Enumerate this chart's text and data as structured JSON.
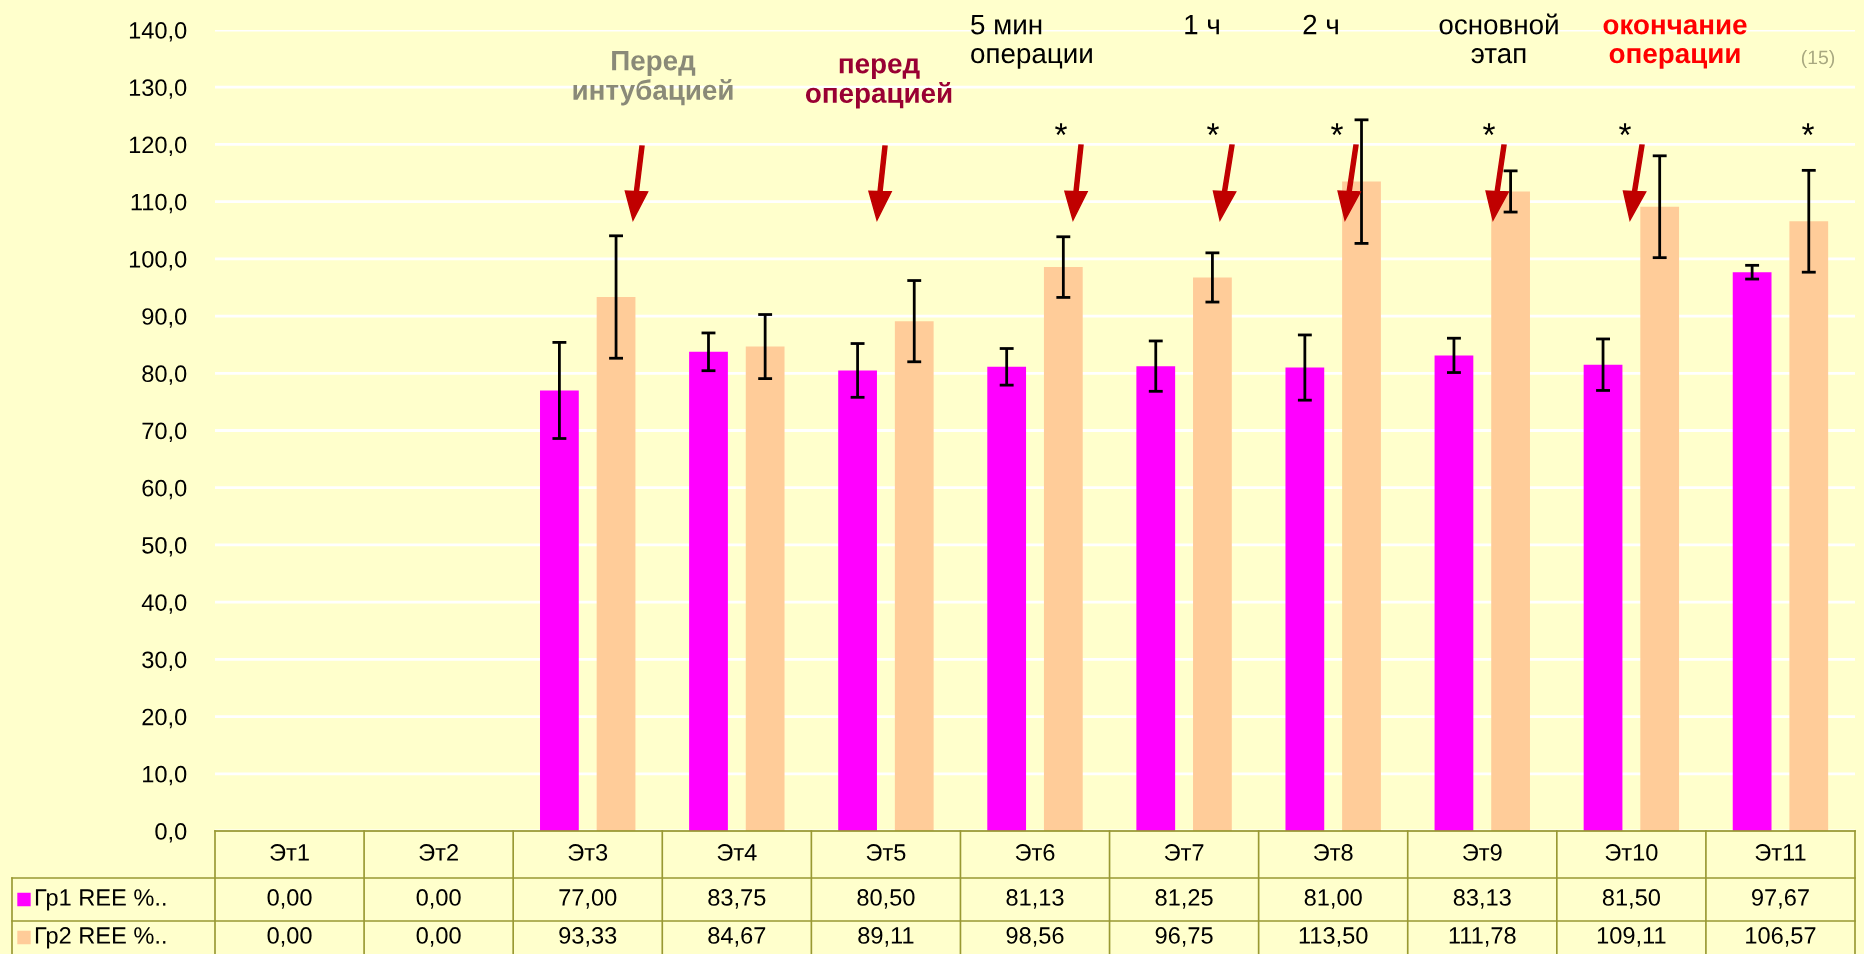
{
  "chart_data": {
    "type": "bar",
    "categories": [
      "Эт1",
      "Эт2",
      "Эт3",
      "Эт4",
      "Эт5",
      "Эт6",
      "Эт7",
      "Эт8",
      "Эт9",
      "Эт10",
      "Эт11"
    ],
    "series": [
      {
        "name": "Гр1 REE %..",
        "color": "#ff00ff",
        "values": [
          0.0,
          0.0,
          77.0,
          83.75,
          80.5,
          81.13,
          81.25,
          81.0,
          83.13,
          81.5,
          97.67
        ],
        "errors": [
          null,
          null,
          8.4,
          3.3,
          4.7,
          3.2,
          4.4,
          5.7,
          3.0,
          4.5,
          1.2
        ],
        "value_labels": [
          "0,00",
          "0,00",
          "77,00",
          "83,75",
          "80,50",
          "81,13",
          "81,25",
          "81,00",
          "83,13",
          "81,50",
          "97,67"
        ]
      },
      {
        "name": "Гр2 REE %..",
        "color": "#ffcc99",
        "values": [
          0.0,
          0.0,
          93.33,
          84.67,
          89.11,
          98.56,
          96.75,
          113.5,
          111.78,
          109.11,
          106.57
        ],
        "errors": [
          null,
          null,
          10.7,
          5.6,
          7.1,
          5.3,
          4.3,
          10.8,
          3.6,
          8.9,
          8.9
        ],
        "value_labels": [
          "0,00",
          "0,00",
          "93,33",
          "84,67",
          "89,11",
          "98,56",
          "96,75",
          "113,50",
          "111,78",
          "109,11",
          "106,57"
        ]
      }
    ],
    "ylim": [
      0,
      140
    ],
    "yticks": [
      {
        "value": 0,
        "label": "0,0"
      },
      {
        "value": 10,
        "label": "10,0"
      },
      {
        "value": 20,
        "label": "20,0"
      },
      {
        "value": 30,
        "label": "30,0"
      },
      {
        "value": 40,
        "label": "40,0"
      },
      {
        "value": 50,
        "label": "50,0"
      },
      {
        "value": 60,
        "label": "60,0"
      },
      {
        "value": 70,
        "label": "70,0"
      },
      {
        "value": 80,
        "label": "80,0"
      },
      {
        "value": 90,
        "label": "90,0"
      },
      {
        "value": 100,
        "label": "100,0"
      },
      {
        "value": 110,
        "label": "110,0"
      },
      {
        "value": 120,
        "label": "120,0"
      },
      {
        "value": 130,
        "label": "130,0"
      },
      {
        "value": 140,
        "label": "140,0"
      }
    ],
    "grid": "y",
    "legend": "bottom",
    "annotations": [
      "Перед\nинтубацией",
      "перед\nоперацией",
      "5 мин\nоперации",
      "1 ч",
      "2 ч",
      "основной\nэтап",
      "окончание\nоперации",
      "*",
      "*",
      "*",
      "*",
      "*",
      "*",
      "(15)"
    ]
  }
}
